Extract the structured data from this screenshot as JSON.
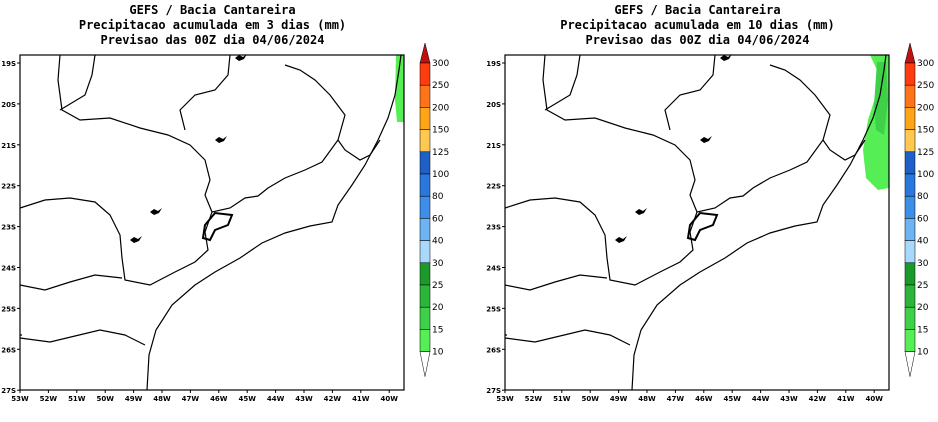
{
  "panels": [
    {
      "title1": "GEFS / Bacia Cantareira",
      "title2": "Precipitacao acumulada em 3 dias (mm)",
      "title3": "Previsao das 00Z dia 04/06/2024",
      "period_days": 3
    },
    {
      "title1": "GEFS / Bacia Cantareira",
      "title2": "Precipitacao acumulada em 10 dias (mm)",
      "title3": "Previsao das 00Z dia 04/06/2024",
      "period_days": 10
    }
  ],
  "lat_ticks": [
    "19S",
    "20S",
    "21S",
    "22S",
    "23S",
    "24S",
    "25S",
    "26S",
    "27S"
  ],
  "lon_ticks": [
    "53W",
    "52W",
    "51W",
    "50W",
    "49W",
    "48W",
    "47W",
    "46W",
    "45W",
    "44W",
    "43W",
    "42W",
    "41W",
    "40W"
  ],
  "colorbar": {
    "labels": [
      "10",
      "15",
      "20",
      "25",
      "30",
      "40",
      "60",
      "80",
      "100",
      "125",
      "150",
      "200",
      "250",
      "300"
    ],
    "colors": [
      "#55ee55",
      "#3fd04a",
      "#2cb53a",
      "#1a9a2a",
      "#a8d8fa",
      "#6cb4f2",
      "#3d8ee8",
      "#2a78de",
      "#1c60c8",
      "#ffc850",
      "#ffa516",
      "#ff7418",
      "#ff3c10",
      "#c01010"
    ]
  }
}
